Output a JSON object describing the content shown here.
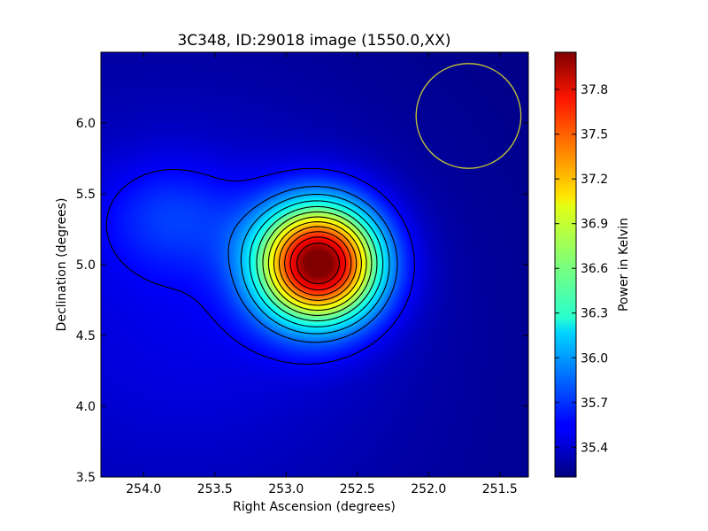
{
  "chart_data": {
    "type": "heatmap",
    "title": "3C348, ID:29018 image (1550.0,XX)",
    "xlabel": "Right Ascension (degrees)",
    "ylabel": "Declination (degrees)",
    "xlim": [
      254.3,
      251.3
    ],
    "ylim": [
      3.5,
      6.5
    ],
    "x_ticks": [
      254.0,
      253.5,
      253.0,
      252.5,
      252.0,
      251.5
    ],
    "x_tick_labels": [
      "254.0",
      "253.5",
      "253.0",
      "252.5",
      "252.0",
      "251.5"
    ],
    "y_ticks": [
      3.5,
      4.0,
      4.5,
      5.0,
      5.5,
      6.0
    ],
    "y_tick_labels": [
      "3.5",
      "4.0",
      "4.5",
      "5.0",
      "5.5",
      "6.0"
    ],
    "colormap": "jet",
    "colorbar": {
      "label": "Power in Kelvin",
      "range": [
        35.2,
        38.05
      ],
      "ticks": [
        35.4,
        35.7,
        36.0,
        36.3,
        36.6,
        36.9,
        37.2,
        37.5,
        37.8
      ],
      "tick_labels": [
        "35.4",
        "35.7",
        "36.0",
        "36.3",
        "36.6",
        "36.9",
        "37.2",
        "37.5",
        "37.8"
      ]
    },
    "source_peak": {
      "ra": 252.77,
      "dec": 5.01,
      "value": 38.0
    },
    "contours": {
      "color": "#000000",
      "levels": [
        35.55,
        35.85,
        36.05,
        36.25,
        36.45,
        36.65,
        36.85,
        37.05,
        37.25,
        37.45,
        37.65,
        37.85
      ]
    },
    "beam_circle": {
      "ra": 251.72,
      "dec": 6.05,
      "radius_deg": 0.37,
      "color": "#c8c832"
    },
    "grid": false,
    "legend": "none"
  }
}
